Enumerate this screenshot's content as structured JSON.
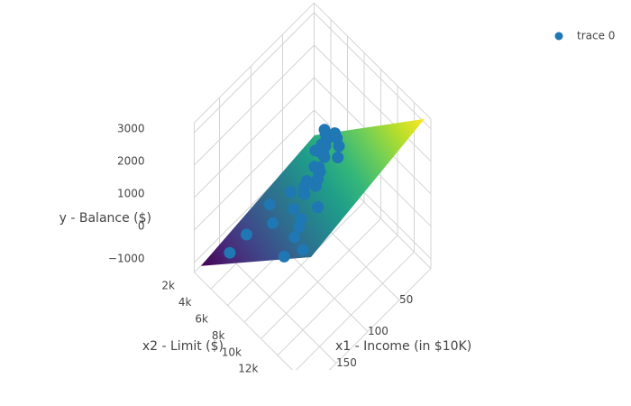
{
  "chart_data": {
    "type": "scatter3d",
    "x1_title": "x1 - Income (in $10K)",
    "x2_title": "x2 - Limit ($)",
    "y_title": "y - Balance ($)",
    "x1lim": [
      0,
      190
    ],
    "x1ticks": [
      50,
      100,
      150
    ],
    "x2lim": [
      0,
      14000
    ],
    "x2ticks": [
      {
        "value": 2000,
        "label": "2k"
      },
      {
        "value": 4000,
        "label": "4k"
      },
      {
        "value": 6000,
        "label": "6k"
      },
      {
        "value": 8000,
        "label": "8k"
      },
      {
        "value": 10000,
        "label": "10k"
      },
      {
        "value": 12000,
        "label": "12k"
      }
    ],
    "ylim": [
      -1300,
      3300
    ],
    "yticks": [
      {
        "value": -1000,
        "label": "−1000"
      },
      0,
      1000,
      2000,
      3000
    ],
    "grid": true,
    "legend": "top-right",
    "surface": {
      "colorscale": "Viridis",
      "x1": [
        10,
        190
      ],
      "x2": [
        800,
        14000
      ],
      "y": [
        [
          -377,
          3500
        ],
        [
          -900,
          2744
        ]
      ]
    },
    "series": [
      {
        "name": "trace 0",
        "color": "#1f77b4",
        "x1": [
          20,
          15,
          25,
          30,
          35,
          40,
          45,
          50,
          55,
          60,
          65,
          70,
          75,
          80,
          85,
          90,
          95,
          100,
          105,
          110,
          110,
          120,
          125,
          130,
          140,
          150,
          160,
          180,
          20,
          30,
          10,
          40,
          55,
          35,
          90
        ],
        "x2": [
          3000,
          2500,
          3500,
          3200,
          4000,
          3800,
          4500,
          5000,
          4200,
          5000,
          5500,
          6000,
          4800,
          6500,
          5200,
          7000,
          6000,
          8000,
          5500,
          3000,
          6500,
          7500,
          4500,
          8500,
          7000,
          9000,
          4000,
          3500,
          4000,
          5000,
          2000,
          6000,
          7000,
          2800,
          4000
        ],
        "y": [
          300,
          200,
          500,
          350,
          600,
          450,
          700,
          800,
          400,
          600,
          900,
          1000,
          500,
          1100,
          600,
          1200,
          800,
          1000,
          400,
          0,
          200,
          900,
          100,
          400,
          0,
          1300,
          300,
          0,
          700,
          1000,
          100,
          1200,
          1400,
          150,
          250
        ]
      }
    ]
  }
}
